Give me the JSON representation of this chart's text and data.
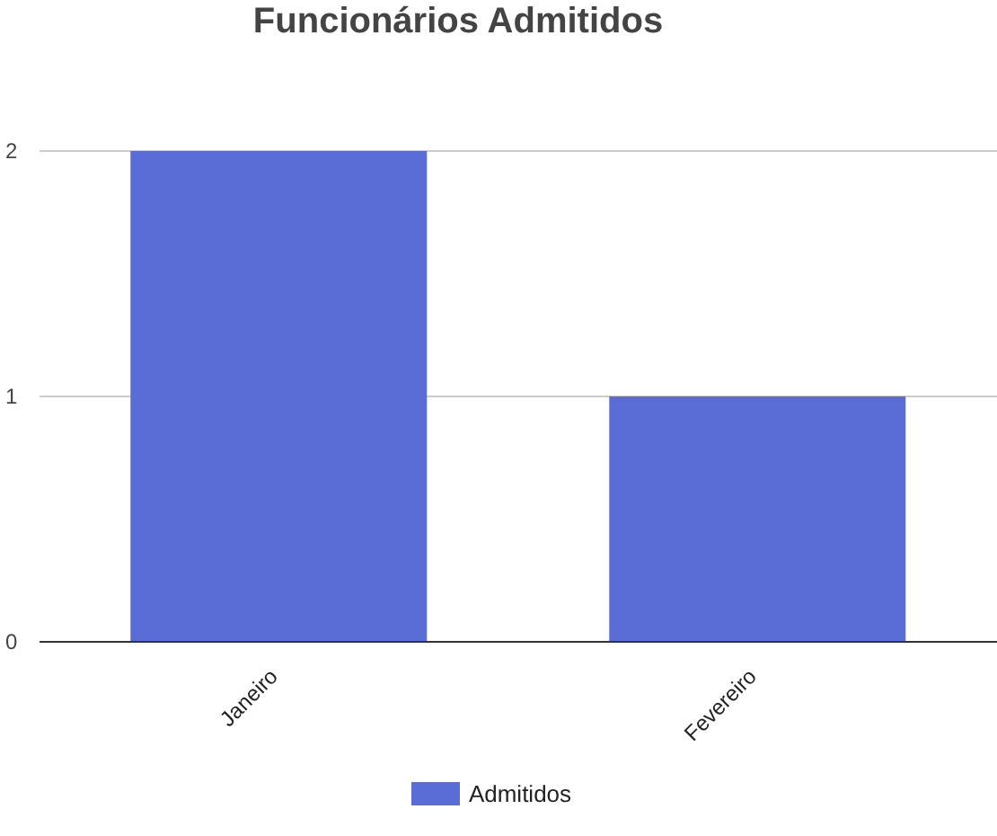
{
  "chart_data": {
    "type": "bar",
    "title": "Funcionários Admitidos",
    "categories": [
      "Janeiro",
      "Fevereiro"
    ],
    "series": [
      {
        "name": "Admitidos",
        "color": "#5a6dd6",
        "values": [
          2,
          1
        ]
      }
    ],
    "ylim": [
      0,
      2
    ],
    "yticks": [
      0,
      1,
      2
    ],
    "grid": "y",
    "legend": "bottom"
  }
}
